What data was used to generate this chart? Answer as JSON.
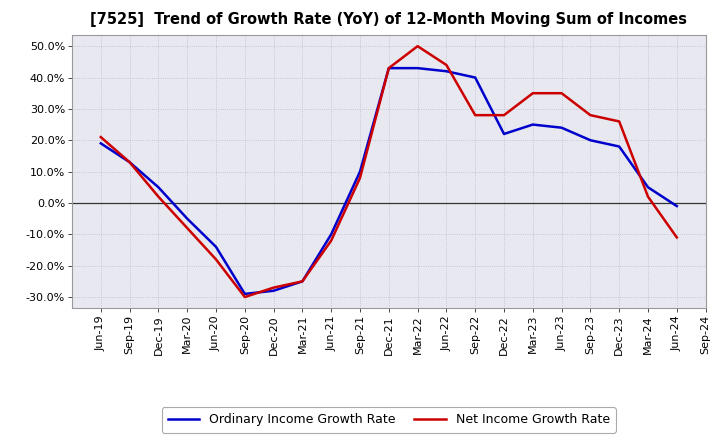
{
  "title": "[7525]  Trend of Growth Rate (YoY) of 12-Month Moving Sum of Incomes",
  "x_labels": [
    "Jun-19",
    "Sep-19",
    "Dec-19",
    "Mar-20",
    "Jun-20",
    "Sep-20",
    "Dec-20",
    "Mar-21",
    "Jun-21",
    "Sep-21",
    "Dec-21",
    "Mar-22",
    "Jun-22",
    "Sep-22",
    "Dec-22",
    "Mar-23",
    "Jun-23",
    "Sep-23",
    "Dec-23",
    "Mar-24",
    "Jun-24",
    "Sep-24"
  ],
  "ordinary_income": [
    0.19,
    0.13,
    0.05,
    -0.05,
    -0.14,
    -0.29,
    -0.28,
    -0.25,
    -0.1,
    0.1,
    0.43,
    0.43,
    0.42,
    0.4,
    0.22,
    0.25,
    0.24,
    0.2,
    0.18,
    0.05,
    -0.01,
    null
  ],
  "net_income": [
    0.21,
    0.13,
    0.02,
    -0.08,
    -0.18,
    -0.3,
    -0.27,
    -0.25,
    -0.12,
    0.08,
    0.43,
    0.5,
    0.44,
    0.28,
    0.28,
    0.35,
    0.35,
    0.28,
    0.26,
    0.02,
    -0.11,
    null
  ],
  "ordinary_color": "#0000cc",
  "net_color": "#cc0000",
  "ylim": [
    -0.335,
    0.535
  ],
  "yticks": [
    -0.3,
    -0.2,
    -0.1,
    0.0,
    0.1,
    0.2,
    0.3,
    0.4,
    0.5
  ],
  "background_color": "#ffffff",
  "plot_bg_color": "#e8e8f0",
  "grid_color": "#bbbbcc",
  "legend_ordinary": "Ordinary Income Growth Rate",
  "legend_net": "Net Income Growth Rate",
  "line_width": 1.8,
  "title_fontsize": 10.5,
  "tick_fontsize": 8.0
}
